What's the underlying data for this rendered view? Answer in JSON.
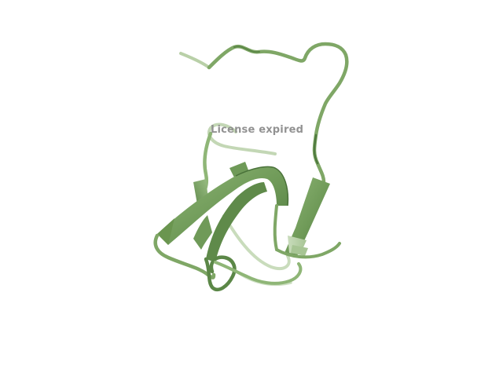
{
  "scene": {
    "background_color": "#ffffff",
    "subject": "protein-cartoon-ribbon",
    "ribbon_color": "#7fa766",
    "ribbon_dark": "#4f7a3f",
    "ribbon_light": "#a9c795"
  },
  "watermark": {
    "text": "License expired",
    "color": "#8d8d8d"
  }
}
